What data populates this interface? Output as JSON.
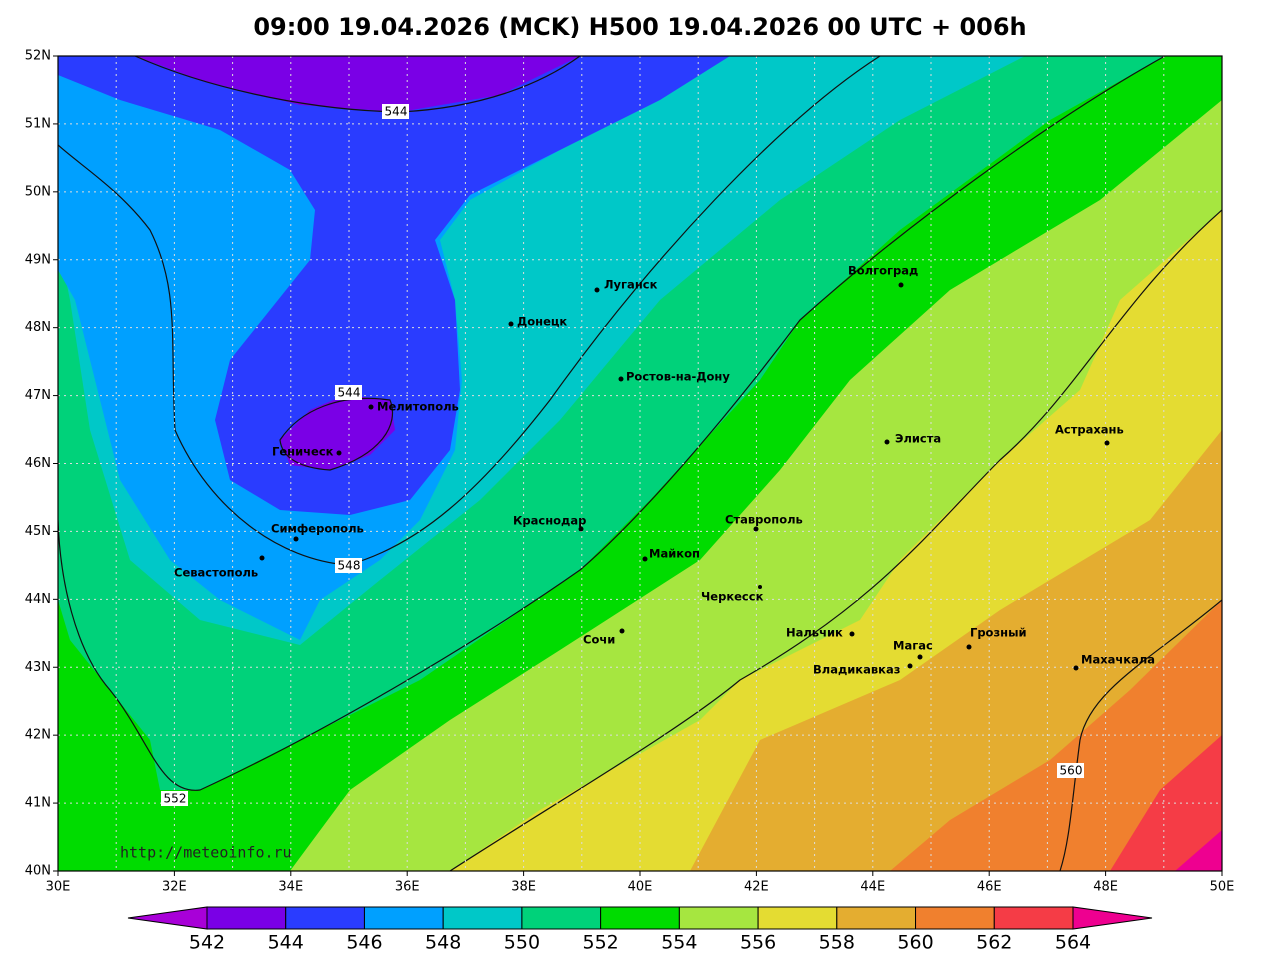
{
  "title": "09:00 19.04.2026 (MCK) H500  19.04.2026 00 UTC + 006h",
  "lat_labels": [
    "52N",
    "51N",
    "50N",
    "49N",
    "48N",
    "47N",
    "46N",
    "45N",
    "44N",
    "43N",
    "42N",
    "41N",
    "40N"
  ],
  "lon_labels": [
    "30E",
    "32E",
    "34E",
    "36E",
    "38E",
    "40E",
    "42E",
    "44E",
    "46E",
    "48E",
    "50E"
  ],
  "cities": [
    "Луганск",
    "Донецк",
    "Ростов-на-Дону",
    "Мелитополь",
    "Геническ",
    "Волгоград",
    "Элиста",
    "Астрахань",
    "Симферополь",
    "Севастополь",
    "Краснодар",
    "Ставрополь",
    "Майкоп",
    "Черкесск",
    "Сочи",
    "Нальчик",
    "Грозный",
    "Магас",
    "Владикавказ",
    "Махачкала"
  ],
  "contour_labels": [
    "544",
    "544",
    "548",
    "552",
    "560"
  ],
  "url": "http://meteoinfo.ru",
  "colorbar": {
    "labels": [
      542,
      544,
      546,
      548,
      550,
      552,
      554,
      556,
      558,
      560,
      562,
      564
    ],
    "colors": [
      "#a800d8",
      "#7a00e6",
      "#2a3cff",
      "#00a0ff",
      "#00c8c8",
      "#00d27a",
      "#00dc00",
      "#a6e640",
      "#e4dc32",
      "#e4ad30",
      "#f0802e",
      "#f53c46",
      "#ee0090"
    ]
  }
}
